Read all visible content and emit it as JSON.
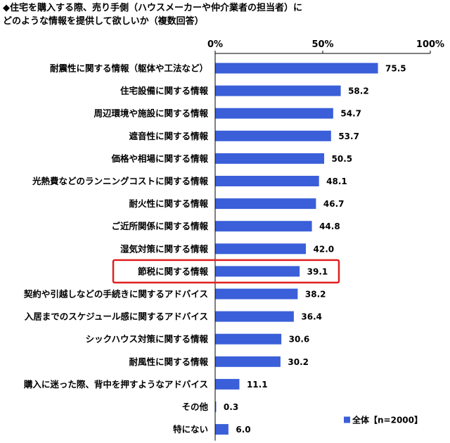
{
  "title": {
    "line1": "◆住宅を購入する際、売り手側（ハウスメーカーや仲介業者の担当者）に",
    "line2": "どのような情報を提供して欲しいか（複数回答）"
  },
  "colors": {
    "bar": "#3A5FD9",
    "highlight_border": "#E02020",
    "axis": "#000000"
  },
  "highlighted_category": "節税に関する情報",
  "chart_data": {
    "type": "bar",
    "orientation": "horizontal",
    "categories": [
      "耐震性に関する情報（躯体や工法など）",
      "住宅設備に関する情報",
      "周辺環境や施設に関する情報",
      "遮音性に関する情報",
      "価格や相場に関する情報",
      "光熱費などのランニングコストに関する情報",
      "耐火性に関する情報",
      "ご近所関係に関する情報",
      "湿気対策に関する情報",
      "節税に関する情報",
      "契約や引越しなどの手続きに関するアドバイス",
      "入居までのスケジュール感に関するアドバイス",
      "シックハウス対策に関する情報",
      "耐風性に関する情報",
      "購入に迷った際、背中を押すようなアドバイス",
      "その他",
      "特にない"
    ],
    "series": [
      {
        "name": "全体【n=2000】",
        "values": [
          75.5,
          58.2,
          54.7,
          53.7,
          50.5,
          48.1,
          46.7,
          44.8,
          42.0,
          39.1,
          38.2,
          36.4,
          30.6,
          30.2,
          11.1,
          0.3,
          6.0
        ],
        "labels": [
          "75.5",
          "58.2",
          "54.7",
          "53.7",
          "50.5",
          "48.1",
          "46.7",
          "44.8",
          "42.0",
          "39.1",
          "38.2",
          "36.4",
          "30.6",
          "30.2",
          "11.1",
          "0.3",
          "6.0"
        ]
      }
    ],
    "xlim": [
      0,
      100
    ],
    "xticks": [
      0,
      50,
      100
    ],
    "xtick_labels": [
      "0%",
      "50%",
      "100%"
    ],
    "axis_position": "top",
    "grid": false,
    "legend": {
      "position": "bottom-right",
      "label": "全体【n=2000】"
    }
  }
}
